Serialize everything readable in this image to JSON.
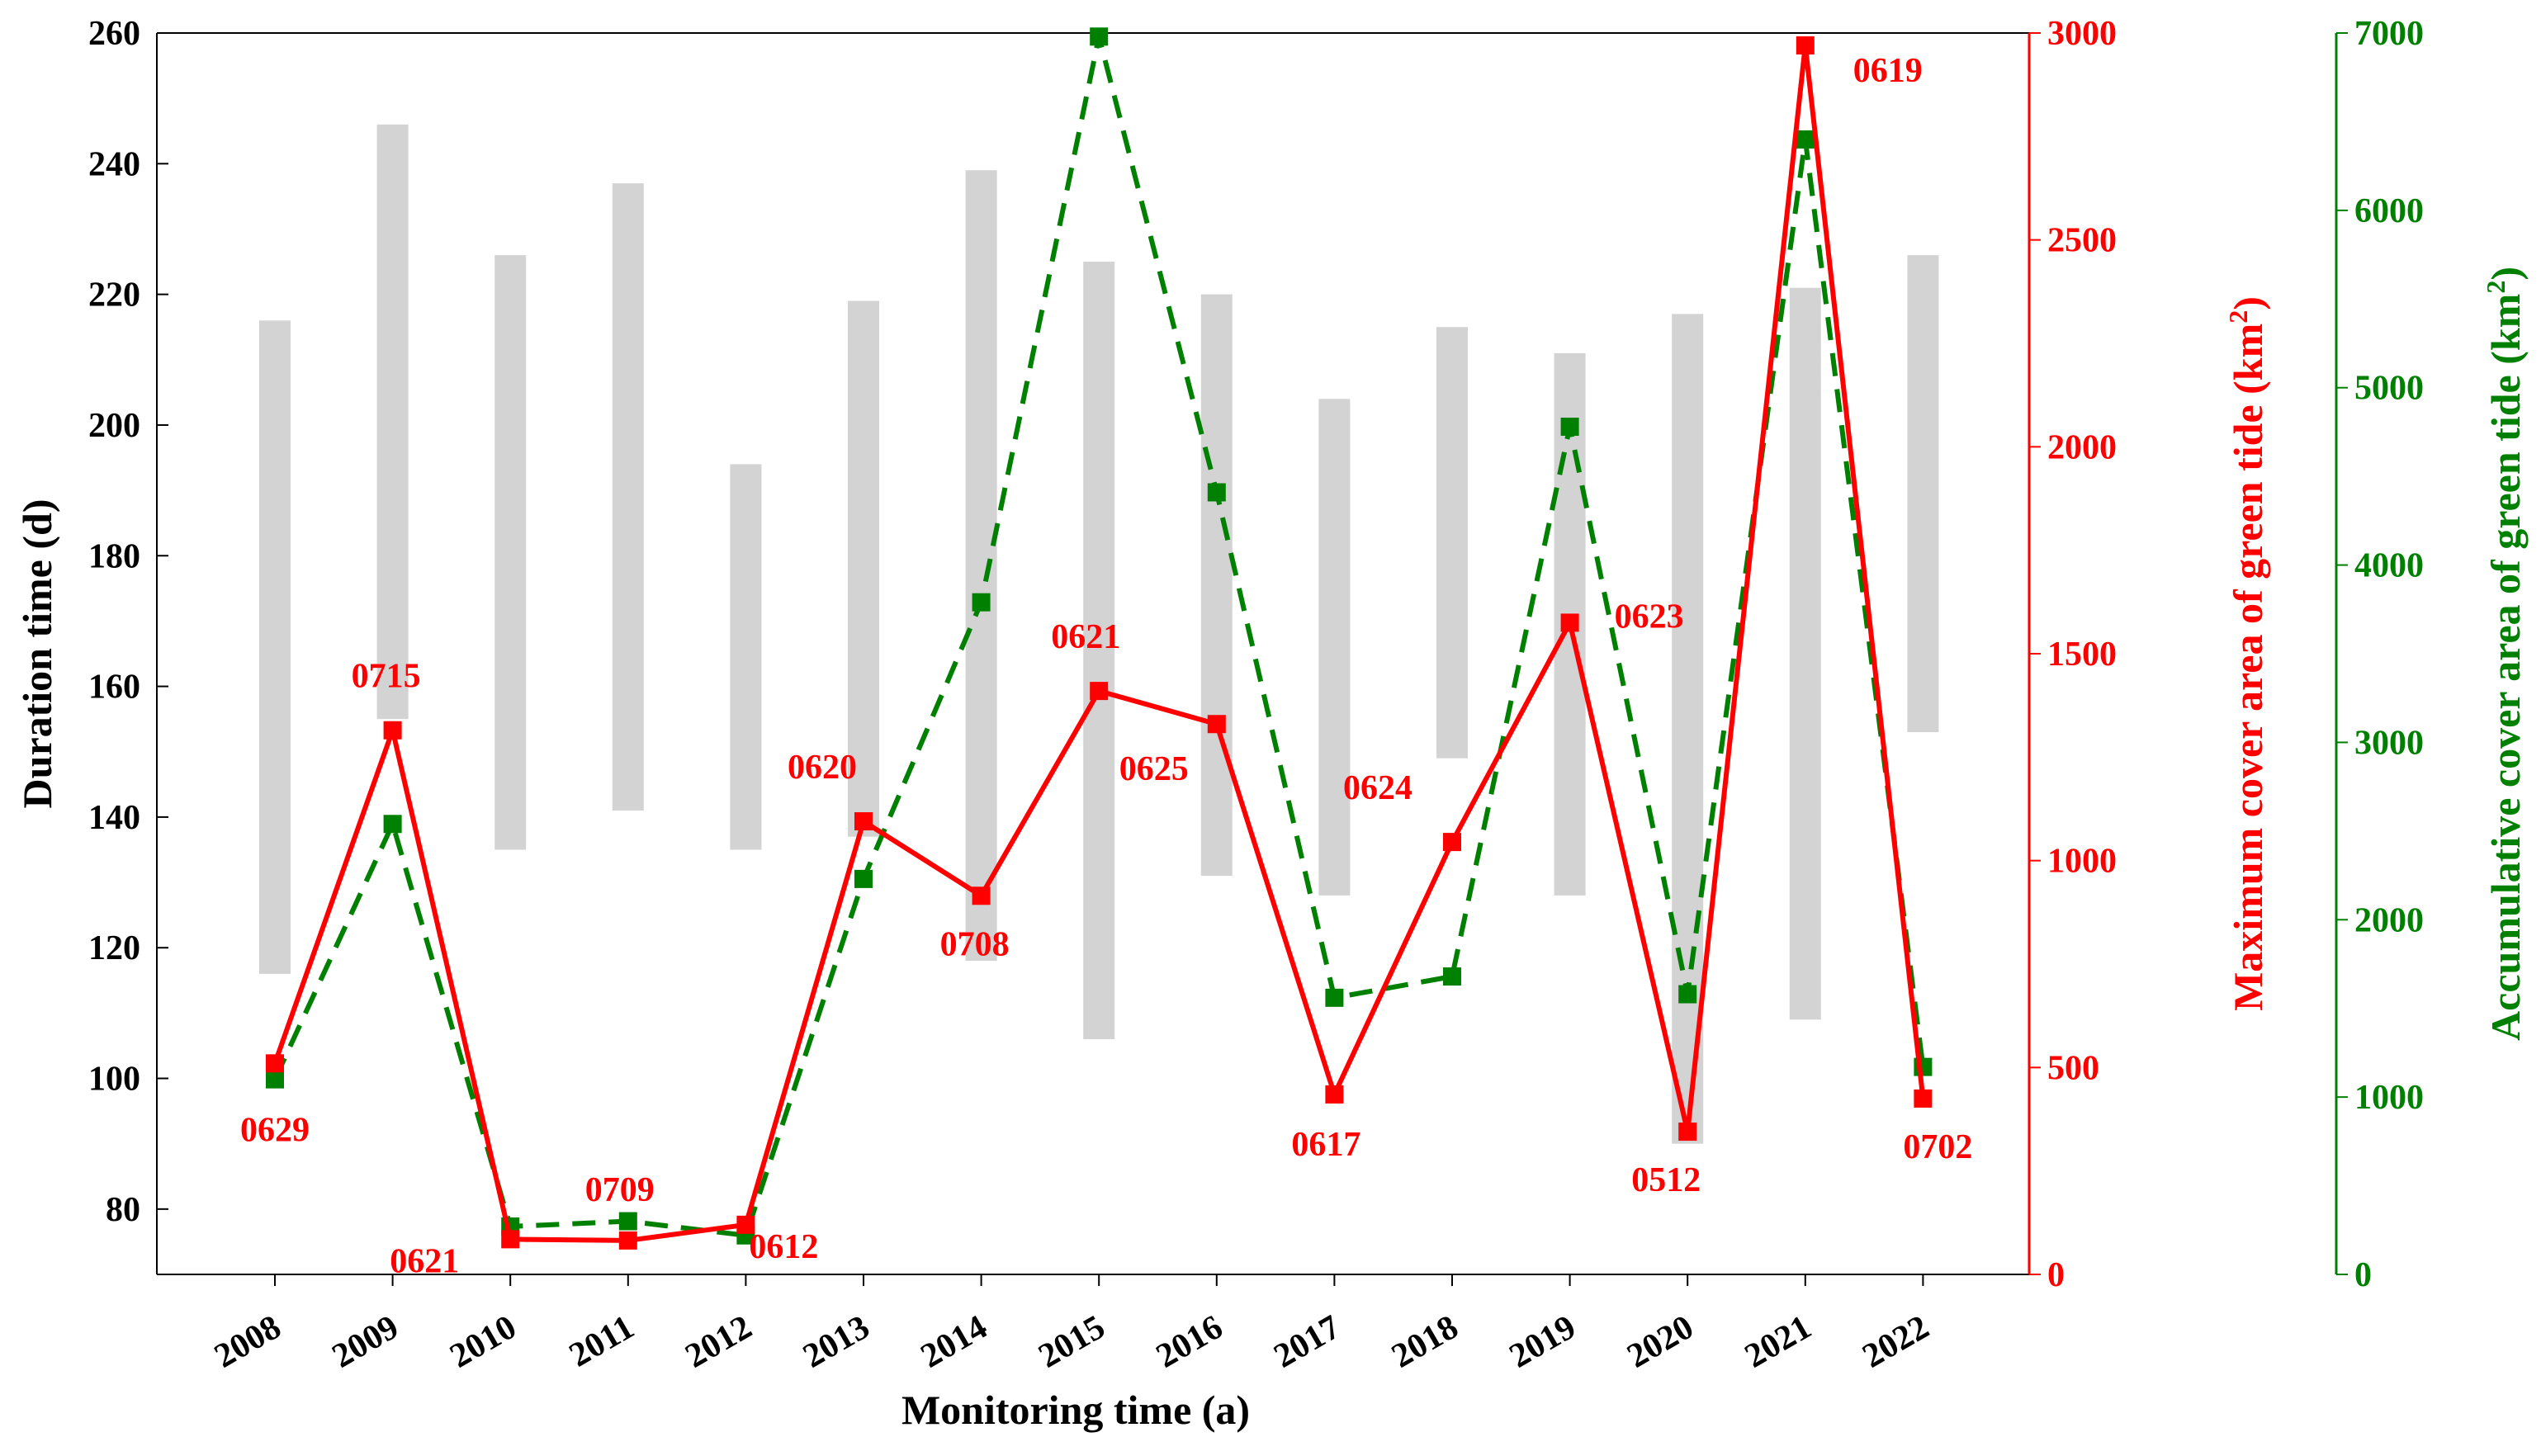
{
  "chart_data": {
    "type": "bar+line",
    "categories": [
      "2008",
      "2009",
      "2010",
      "2011",
      "2012",
      "2013",
      "2014",
      "2015",
      "2016",
      "2017",
      "2018",
      "2019",
      "2020",
      "2021",
      "2022"
    ],
    "xlabel": "Monitoring time (a)",
    "duration_bars": {
      "name": "Duration time",
      "axis": "left",
      "color": "#d3d3d3",
      "start": [
        116,
        155,
        135,
        141,
        135,
        137,
        118,
        106,
        131,
        128,
        149,
        128,
        90,
        109,
        153
      ],
      "end": [
        216,
        246,
        226,
        237,
        194,
        219,
        239,
        225,
        220,
        204,
        215,
        211,
        217,
        221,
        226
      ]
    },
    "series": [
      {
        "name": "Maximum cover area of green tide",
        "axis": "right1",
        "color": "#ff0000",
        "style": "solid",
        "values": [
          510,
          1315,
          85,
          82,
          120,
          1095,
          915,
          1410,
          1330,
          435,
          1045,
          1575,
          345,
          2970,
          425
        ],
        "date_labels": [
          "0629",
          "0715",
          "0621",
          "0709",
          "0612",
          "0620",
          "0708",
          "0621",
          "0625",
          "0617",
          "0624",
          "0623",
          "0512",
          "0619",
          "0702"
        ]
      },
      {
        "name": "Accumulative cover area of green tide",
        "axis": "right2",
        "color": "#008000",
        "style": "dashed",
        "values": [
          1100,
          2540,
          270,
          300,
          220,
          2230,
          3790,
          6980,
          4410,
          1560,
          1680,
          4780,
          1580,
          6400,
          1170
        ]
      }
    ],
    "axes": {
      "left": {
        "label": "Duration time (d)",
        "ylim": [
          70,
          260
        ],
        "ticks": [
          80,
          100,
          120,
          140,
          160,
          180,
          200,
          220,
          240,
          260
        ],
        "color": "#000000"
      },
      "right1": {
        "label_main": "Maximum cover area of green tide (km",
        "label_sup": "2",
        "label_end": ")",
        "ylim": [
          0,
          3000
        ],
        "ticks": [
          0,
          500,
          1000,
          1500,
          2000,
          2500,
          3000
        ],
        "color": "#ff0000"
      },
      "right2": {
        "label_main": "Accumulative cover area of green tide (km",
        "label_sup": "2",
        "label_end": ")",
        "ylim": [
          0,
          7000
        ],
        "ticks": [
          0,
          1000,
          2000,
          3000,
          4000,
          5000,
          6000,
          7000
        ],
        "color": "#008000"
      }
    }
  }
}
